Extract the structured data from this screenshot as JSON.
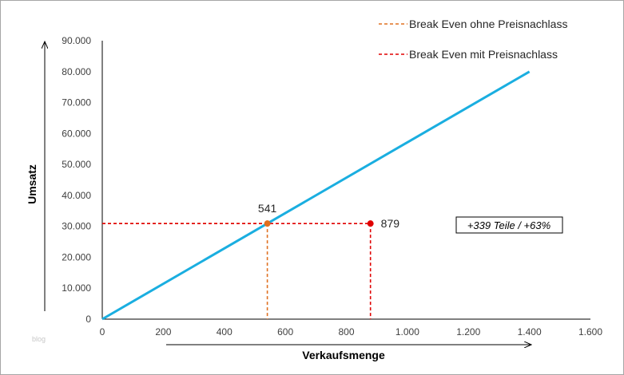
{
  "chart_data": {
    "type": "line",
    "xlabel": "Verkaufsmenge",
    "ylabel": "Umsatz",
    "xlim": [
      0,
      1600
    ],
    "ylim": [
      0,
      90000
    ],
    "x_ticks": [
      0,
      200,
      400,
      600,
      800,
      1000,
      1200,
      1400,
      1600
    ],
    "x_tick_labels": [
      "0",
      "200",
      "400",
      "600",
      "800",
      "1.000",
      "1.200",
      "1.400",
      "1.600"
    ],
    "y_ticks": [
      0,
      10000,
      20000,
      30000,
      40000,
      50000,
      60000,
      70000,
      80000,
      90000
    ],
    "y_tick_labels": [
      "0",
      "10.000",
      "20.000",
      "30.000",
      "40.000",
      "50.000",
      "60.000",
      "70.000",
      "80.000",
      "90.000"
    ],
    "grid": false,
    "legend_position": "top-right",
    "series": [
      {
        "x": [
          0,
          1400
        ],
        "y": [
          0,
          80000
        ],
        "color": "#1aaee0"
      }
    ],
    "break_even": [
      {
        "name": "Break Even ohne Preisnachlass",
        "label": "541",
        "x": 541,
        "y": 30900,
        "color": "#e07020"
      },
      {
        "name": "Break Even mit Preisnachlass",
        "label": "879",
        "x": 879,
        "y": 30900,
        "color": "#e00000"
      }
    ],
    "annotation": "+339 Teile / +63%"
  },
  "watermark": "blog"
}
